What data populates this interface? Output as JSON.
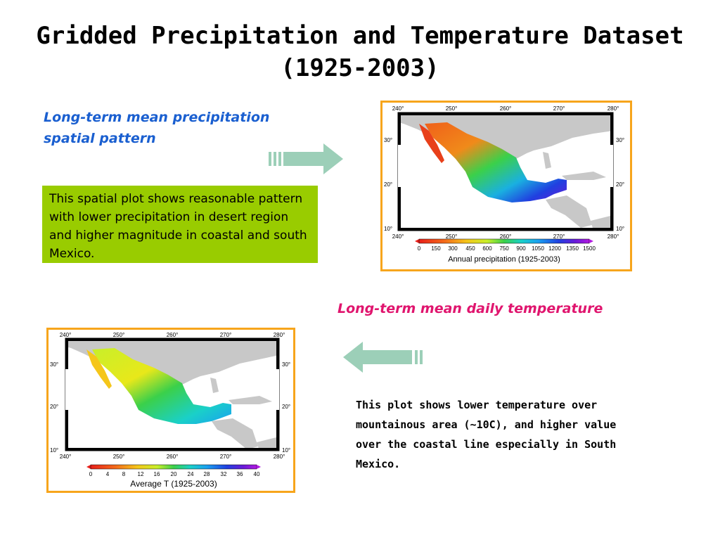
{
  "slide": {
    "title_line1": "Gridded Precipitation and Temperature Dataset",
    "title_line2": "(1925-2003)",
    "precip_heading_line1": "Long-term mean precipitation",
    "precip_heading_line2": "spatial pattern",
    "precip_description": "This spatial plot shows reasonable pattern with lower precipitation in desert region and higher magnitude in coastal and south Mexico.",
    "temp_heading": "Long-term mean daily temperature",
    "temp_description": "This plot shows lower temperature over mountainous area (~10C), and higher value over the coastal line especially in South Mexico."
  },
  "maps": {
    "lon_ticks": [
      "240°",
      "250°",
      "260°",
      "270°",
      "280°"
    ],
    "lat_ticks": [
      "30°",
      "20°",
      "10°"
    ],
    "colors": {
      "land": "#c8c8c8",
      "ocean": "#ffffff",
      "border": "#f7a51c"
    }
  },
  "precipitation_map": {
    "colorbar_ticks": [
      "0",
      "150",
      "300",
      "450",
      "600",
      "750",
      "900",
      "1050",
      "1200",
      "1350",
      "1500"
    ],
    "caption": "Annual precipitation (1925-2003)"
  },
  "temperature_map": {
    "colorbar_ticks": [
      "0",
      "4",
      "8",
      "12",
      "16",
      "20",
      "24",
      "28",
      "32",
      "36",
      "40"
    ],
    "caption": "Average T (1925-2003)"
  }
}
